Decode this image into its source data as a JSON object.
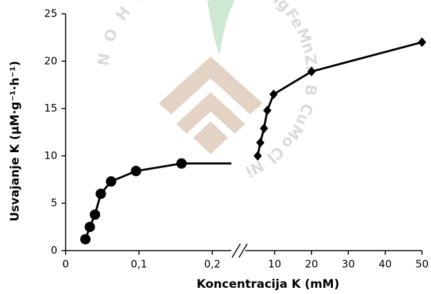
{
  "chart_data": {
    "type": "line",
    "x_label": "Koncentracija K (mM)",
    "y_label": "Usvajanje K (μM·g⁻¹·h⁻¹)",
    "xlim": [
      0,
      0.226
    ],
    "xticks": [
      0,
      {
        "value": 0.1,
        "label": "0,1"
      },
      {
        "value": 0.2,
        "label": "0,2"
      }
    ],
    "x2lim": [
      2,
      50
    ],
    "x2ticks": [
      10,
      20,
      30,
      40,
      50
    ],
    "ylim": [
      0,
      25
    ],
    "yticks": [
      0,
      5,
      10,
      15,
      20,
      25
    ],
    "watermark": [
      "N",
      "O",
      "H",
      "C",
      "N",
      "P",
      "K",
      "S",
      "Ca",
      "Mg",
      "Fe",
      "Mn",
      "Zn",
      "B",
      "Cu",
      "Mo",
      "Cl",
      "Ni"
    ],
    "series": [
      {
        "marker": "circle",
        "color": "#000000",
        "axis": "x",
        "x": [
          0.027,
          0.033,
          0.04,
          0.048,
          0.062,
          0.096,
          0.158
        ],
        "values": [
          1.2,
          2.5,
          3.8,
          6.0,
          7.3,
          8.4,
          9.2
        ]
      },
      {
        "marker": "diamond",
        "color": "#000000",
        "axis": "x2",
        "x": [
          5.4,
          6.1,
          7.1,
          8,
          9.7,
          20,
          50
        ],
        "values": [
          10.0,
          11.4,
          12.9,
          14.8,
          16.5,
          18.9,
          22.0
        ]
      }
    ]
  }
}
